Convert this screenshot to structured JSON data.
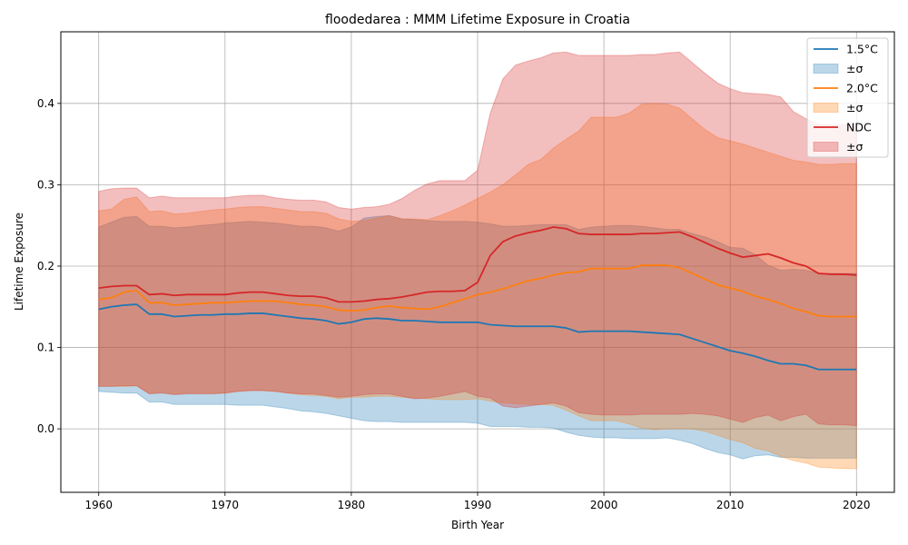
{
  "chart_data": {
    "type": "area",
    "title": "floodedarea : MMM Lifetime Exposure in Croatia",
    "xlabel": "Birth Year",
    "ylabel": "Lifetime Exposure",
    "xlim": [
      1957,
      2023
    ],
    "ylim": [
      -0.078,
      0.488
    ],
    "x_ticks": [
      1960,
      1970,
      1980,
      1990,
      2000,
      2010,
      2020
    ],
    "y_ticks": [
      0.0,
      0.1,
      0.2,
      0.3,
      0.4
    ],
    "y_tick_labels": [
      "0.0",
      "0.1",
      "0.2",
      "0.3",
      "0.4"
    ],
    "grid": true,
    "legend_position": "top-right",
    "x": [
      1960,
      1961,
      1962,
      1963,
      1964,
      1965,
      1966,
      1967,
      1968,
      1969,
      1970,
      1971,
      1972,
      1973,
      1974,
      1975,
      1976,
      1977,
      1978,
      1979,
      1980,
      1981,
      1982,
      1983,
      1984,
      1985,
      1986,
      1987,
      1988,
      1989,
      1990,
      1991,
      1992,
      1993,
      1994,
      1995,
      1996,
      1997,
      1998,
      1999,
      2000,
      2001,
      2002,
      2003,
      2004,
      2005,
      2006,
      2007,
      2008,
      2009,
      2010,
      2011,
      2012,
      2013,
      2014,
      2015,
      2016,
      2017,
      2018,
      2019,
      2020
    ],
    "series": [
      {
        "name": "1.5°C",
        "band_label": "±σ",
        "color": "#1f77b4",
        "mean": [
          0.147,
          0.15,
          0.152,
          0.153,
          0.141,
          0.141,
          0.138,
          0.139,
          0.14,
          0.14,
          0.141,
          0.141,
          0.142,
          0.142,
          0.14,
          0.138,
          0.136,
          0.135,
          0.133,
          0.129,
          0.131,
          0.135,
          0.136,
          0.135,
          0.133,
          0.133,
          0.132,
          0.131,
          0.131,
          0.131,
          0.131,
          0.128,
          0.127,
          0.126,
          0.126,
          0.126,
          0.126,
          0.124,
          0.119,
          0.12,
          0.12,
          0.12,
          0.12,
          0.119,
          0.118,
          0.117,
          0.116,
          0.111,
          0.106,
          0.101,
          0.096,
          0.093,
          0.089,
          0.084,
          0.08,
          0.08,
          0.078,
          0.073,
          0.073,
          0.073,
          0.073
        ],
        "lower": [
          0.046,
          0.045,
          0.044,
          0.044,
          0.033,
          0.033,
          0.03,
          0.03,
          0.03,
          0.03,
          0.03,
          0.029,
          0.029,
          0.029,
          0.027,
          0.025,
          0.022,
          0.021,
          0.019,
          0.016,
          0.013,
          0.01,
          0.009,
          0.009,
          0.008,
          0.008,
          0.008,
          0.008,
          0.008,
          0.008,
          0.007,
          0.003,
          0.003,
          0.003,
          0.002,
          0.002,
          0.001,
          -0.004,
          -0.008,
          -0.01,
          -0.011,
          -0.011,
          -0.012,
          -0.012,
          -0.012,
          -0.011,
          -0.014,
          -0.018,
          -0.024,
          -0.029,
          -0.032,
          -0.037,
          -0.033,
          -0.032,
          -0.035,
          -0.035,
          -0.036,
          -0.036,
          -0.036,
          -0.036,
          -0.036
        ],
        "upper": [
          0.248,
          0.254,
          0.26,
          0.261,
          0.249,
          0.249,
          0.247,
          0.248,
          0.25,
          0.251,
          0.253,
          0.254,
          0.255,
          0.254,
          0.253,
          0.251,
          0.249,
          0.249,
          0.247,
          0.243,
          0.248,
          0.259,
          0.261,
          0.262,
          0.258,
          0.257,
          0.256,
          0.255,
          0.255,
          0.255,
          0.254,
          0.252,
          0.249,
          0.249,
          0.25,
          0.251,
          0.251,
          0.251,
          0.245,
          0.248,
          0.249,
          0.25,
          0.25,
          0.249,
          0.247,
          0.245,
          0.245,
          0.24,
          0.236,
          0.23,
          0.223,
          0.222,
          0.214,
          0.201,
          0.195,
          0.196,
          0.195,
          0.191,
          0.191,
          0.191,
          0.191
        ]
      },
      {
        "name": "2.0°C",
        "band_label": "±σ",
        "color": "#ff7f0e",
        "mean": [
          0.159,
          0.161,
          0.168,
          0.17,
          0.155,
          0.155,
          0.152,
          0.153,
          0.154,
          0.155,
          0.155,
          0.156,
          0.157,
          0.157,
          0.157,
          0.155,
          0.153,
          0.152,
          0.15,
          0.146,
          0.145,
          0.146,
          0.149,
          0.151,
          0.149,
          0.148,
          0.147,
          0.15,
          0.155,
          0.16,
          0.165,
          0.168,
          0.172,
          0.177,
          0.182,
          0.185,
          0.189,
          0.192,
          0.193,
          0.197,
          0.197,
          0.197,
          0.197,
          0.201,
          0.201,
          0.201,
          0.198,
          0.191,
          0.184,
          0.177,
          0.173,
          0.169,
          0.163,
          0.159,
          0.154,
          0.148,
          0.144,
          0.139,
          0.138,
          0.138,
          0.138
        ],
        "lower": [
          0.053,
          0.053,
          0.052,
          0.053,
          0.044,
          0.045,
          0.043,
          0.044,
          0.044,
          0.044,
          0.044,
          0.046,
          0.047,
          0.047,
          0.046,
          0.044,
          0.042,
          0.041,
          0.04,
          0.037,
          0.039,
          0.039,
          0.04,
          0.04,
          0.039,
          0.038,
          0.037,
          0.036,
          0.036,
          0.036,
          0.037,
          0.034,
          0.032,
          0.031,
          0.03,
          0.03,
          0.029,
          0.023,
          0.016,
          0.01,
          0.01,
          0.01,
          0.006,
          0.001,
          -0.001,
          0.0,
          0.0,
          0.0,
          -0.003,
          -0.008,
          -0.013,
          -0.017,
          -0.024,
          -0.027,
          -0.034,
          -0.039,
          -0.042,
          -0.047,
          -0.048,
          -0.049,
          -0.049
        ],
        "upper": [
          0.268,
          0.27,
          0.282,
          0.285,
          0.267,
          0.268,
          0.264,
          0.265,
          0.267,
          0.269,
          0.27,
          0.272,
          0.273,
          0.273,
          0.271,
          0.269,
          0.267,
          0.267,
          0.265,
          0.258,
          0.255,
          0.256,
          0.259,
          0.262,
          0.258,
          0.258,
          0.257,
          0.262,
          0.268,
          0.275,
          0.283,
          0.291,
          0.3,
          0.312,
          0.325,
          0.331,
          0.345,
          0.356,
          0.366,
          0.383,
          0.383,
          0.383,
          0.388,
          0.399,
          0.4,
          0.399,
          0.394,
          0.381,
          0.368,
          0.358,
          0.354,
          0.35,
          0.345,
          0.34,
          0.335,
          0.33,
          0.328,
          0.325,
          0.325,
          0.326,
          0.326
        ]
      },
      {
        "name": "NDC",
        "band_label": "±σ",
        "color": "#d62728",
        "mean": [
          0.173,
          0.175,
          0.176,
          0.176,
          0.165,
          0.166,
          0.164,
          0.165,
          0.165,
          0.165,
          0.165,
          0.167,
          0.168,
          0.168,
          0.166,
          0.164,
          0.163,
          0.163,
          0.161,
          0.156,
          0.156,
          0.157,
          0.159,
          0.16,
          0.162,
          0.165,
          0.168,
          0.169,
          0.169,
          0.17,
          0.18,
          0.213,
          0.23,
          0.237,
          0.241,
          0.244,
          0.248,
          0.246,
          0.24,
          0.239,
          0.239,
          0.239,
          0.239,
          0.24,
          0.24,
          0.241,
          0.242,
          0.236,
          0.229,
          0.222,
          0.216,
          0.211,
          0.213,
          0.215,
          0.21,
          0.204,
          0.2,
          0.191,
          0.19,
          0.19,
          0.189
        ],
        "lower": [
          0.052,
          0.052,
          0.053,
          0.053,
          0.043,
          0.044,
          0.042,
          0.043,
          0.043,
          0.043,
          0.044,
          0.046,
          0.047,
          0.047,
          0.046,
          0.044,
          0.043,
          0.043,
          0.041,
          0.039,
          0.04,
          0.042,
          0.043,
          0.043,
          0.04,
          0.037,
          0.038,
          0.04,
          0.043,
          0.046,
          0.04,
          0.038,
          0.028,
          0.026,
          0.028,
          0.03,
          0.032,
          0.028,
          0.02,
          0.018,
          0.017,
          0.017,
          0.017,
          0.018,
          0.018,
          0.018,
          0.018,
          0.019,
          0.018,
          0.016,
          0.012,
          0.008,
          0.014,
          0.017,
          0.01,
          0.015,
          0.018,
          0.006,
          0.005,
          0.005,
          0.004
        ],
        "upper": [
          0.292,
          0.295,
          0.296,
          0.296,
          0.284,
          0.286,
          0.284,
          0.284,
          0.284,
          0.284,
          0.284,
          0.286,
          0.287,
          0.287,
          0.284,
          0.282,
          0.281,
          0.281,
          0.279,
          0.272,
          0.27,
          0.272,
          0.273,
          0.276,
          0.283,
          0.293,
          0.301,
          0.305,
          0.305,
          0.305,
          0.318,
          0.388,
          0.43,
          0.447,
          0.452,
          0.456,
          0.462,
          0.463,
          0.459,
          0.459,
          0.459,
          0.459,
          0.459,
          0.46,
          0.46,
          0.462,
          0.463,
          0.45,
          0.437,
          0.425,
          0.418,
          0.413,
          0.412,
          0.411,
          0.408,
          0.39,
          0.381,
          0.374,
          0.374,
          0.374,
          0.375
        ]
      }
    ]
  }
}
